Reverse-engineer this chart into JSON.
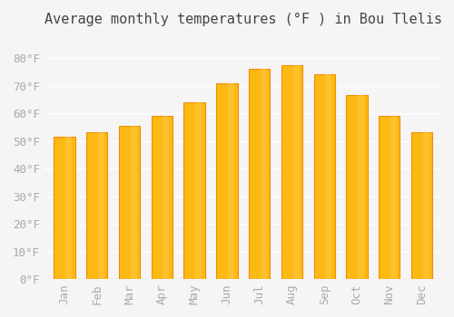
{
  "title": "Average monthly temperatures (°F ) in Bou Tlelis",
  "months": [
    "Jan",
    "Feb",
    "Mar",
    "Apr",
    "May",
    "Jun",
    "Jul",
    "Aug",
    "Sep",
    "Oct",
    "Nov",
    "Dec"
  ],
  "values": [
    51.5,
    53.0,
    55.5,
    59.0,
    64.0,
    71.0,
    76.0,
    77.5,
    74.0,
    66.5,
    59.0,
    53.0
  ],
  "bar_color_main": "#FDB913",
  "bar_color_edge": "#F08C00",
  "ylim": [
    0,
    88
  ],
  "yticks": [
    0,
    10,
    20,
    30,
    40,
    50,
    60,
    70,
    80
  ],
  "ytick_labels": [
    "0°F",
    "10°F",
    "20°F",
    "30°F",
    "40°F",
    "50°F",
    "60°F",
    "70°F",
    "80°F"
  ],
  "background_color": "#f5f5f5",
  "grid_color": "#ffffff",
  "title_fontsize": 11,
  "tick_fontsize": 9,
  "tick_color": "#aaaaaa"
}
